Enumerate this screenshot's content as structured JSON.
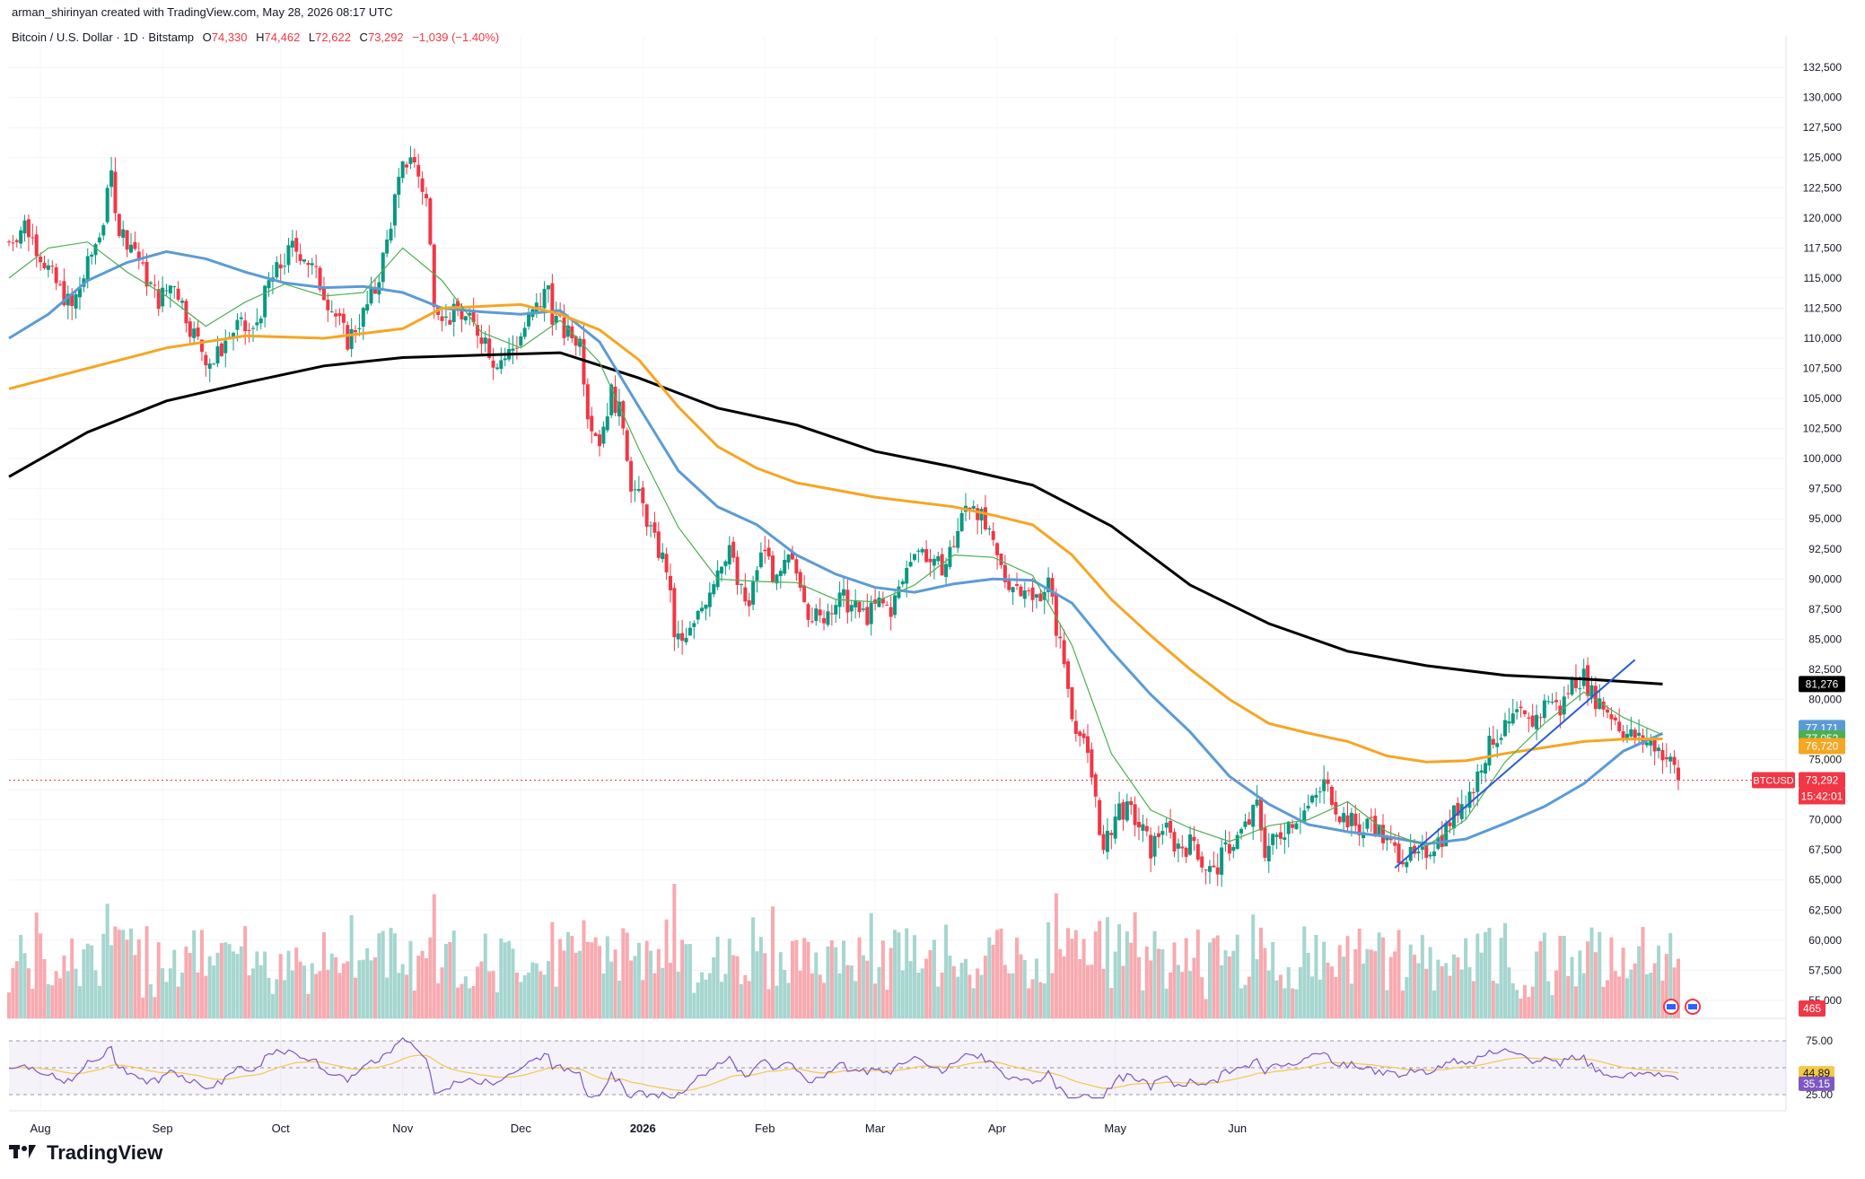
{
  "credit": "arman_shirinyan created with TradingView.com, May 28, 2026 08:17 UTC",
  "brand": "TradingView",
  "legend": {
    "symbol": "Bitcoin / U.S. Dollar · 1D · Bitstamp",
    "open_label": "O",
    "open": "74,330",
    "high_label": "H",
    "high": "74,462",
    "low_label": "L",
    "low": "72,622",
    "close_label": "C",
    "close": "73,292",
    "change": "−1,039 (−1.40%)"
  },
  "colors": {
    "up": "#089981",
    "down": "#f23645",
    "ma_black": "#000000",
    "ma_blue": "#5b9bd5",
    "ma_orange": "#f5a623",
    "ma_green": "#4caf50",
    "trendline": "#2a5bd7",
    "rsi": "#7e57c2",
    "rsi_ma": "#f2c94c"
  },
  "chart_data": {
    "type": "candlestick",
    "title": "Bitcoin / U.S. Dollar · 1D · Bitstamp",
    "x_labels": [
      "Aug",
      "Sep",
      "Oct",
      "Nov",
      "Dec",
      "2026",
      "Feb",
      "Mar",
      "Apr",
      "May",
      "Jun"
    ],
    "y_ticks": [
      132500,
      130000,
      127500,
      125000,
      122500,
      120000,
      117500,
      115000,
      112500,
      110000,
      107500,
      105000,
      102500,
      100000,
      97500,
      95000,
      92500,
      90000,
      87500,
      85000,
      82500,
      80000,
      77500,
      75000,
      72500,
      70000,
      67500,
      65000,
      62500,
      60000,
      57500,
      55000
    ],
    "y_tick_labels": [
      "132,500",
      "130,000",
      "127,500",
      "125,000",
      "122,500",
      "120,000",
      "117,500",
      "115,000",
      "112,500",
      "110,000",
      "107,500",
      "105,000",
      "102,500",
      "100,000",
      "97,500",
      "95,000",
      "92,500",
      "90,000",
      "87,500",
      "85,000",
      "82,500",
      "80,000",
      "77,500",
      "75,000",
      "72,500",
      "70,000",
      "67,500",
      "65,000",
      "62,500",
      "60,000",
      "57,500",
      "55,000"
    ],
    "ylim": [
      53500,
      134000
    ],
    "price_path": [
      [
        0,
        118000
      ],
      [
        4,
        119500
      ],
      [
        8,
        117000
      ],
      [
        12,
        114500
      ],
      [
        16,
        112500
      ],
      [
        20,
        116000
      ],
      [
        24,
        119800
      ],
      [
        26,
        123500
      ],
      [
        28,
        119000
      ],
      [
        32,
        117500
      ],
      [
        34,
        115500
      ],
      [
        38,
        113200
      ],
      [
        42,
        114800
      ],
      [
        46,
        111000
      ],
      [
        50,
        108500
      ],
      [
        52,
        108000
      ],
      [
        55,
        109800
      ],
      [
        58,
        111000
      ],
      [
        62,
        110400
      ],
      [
        66,
        114500
      ],
      [
        69,
        116000
      ],
      [
        72,
        117500
      ],
      [
        75,
        117000
      ],
      [
        78,
        115200
      ],
      [
        82,
        112500
      ],
      [
        86,
        109800
      ],
      [
        90,
        112000
      ],
      [
        93,
        114000
      ],
      [
        96,
        118000
      ],
      [
        98,
        121500
      ],
      [
        100,
        124000
      ],
      [
        102,
        125300
      ],
      [
        104,
        123500
      ],
      [
        106,
        121500
      ],
      [
        108,
        113500
      ],
      [
        111,
        111500
      ],
      [
        114,
        112200
      ],
      [
        118,
        111000
      ],
      [
        121,
        110000
      ],
      [
        123,
        108200
      ],
      [
        126,
        108400
      ],
      [
        129,
        109600
      ],
      [
        132,
        111500
      ],
      [
        135,
        113000
      ],
      [
        137,
        114400
      ],
      [
        138,
        112000
      ],
      [
        141,
        110500
      ],
      [
        145,
        109800
      ],
      [
        147,
        104000
      ],
      [
        150,
        101500
      ],
      [
        153,
        105500
      ],
      [
        156,
        103000
      ],
      [
        158,
        98000
      ],
      [
        161,
        96000
      ],
      [
        164,
        93000
      ],
      [
        167,
        91000
      ],
      [
        169,
        85500
      ],
      [
        171,
        84500
      ],
      [
        174,
        86000
      ],
      [
        177,
        88500
      ],
      [
        180,
        91000
      ],
      [
        183,
        92800
      ],
      [
        185,
        89500
      ],
      [
        188,
        87500
      ],
      [
        190,
        91000
      ],
      [
        192,
        92500
      ],
      [
        195,
        89500
      ],
      [
        198,
        91500
      ],
      [
        201,
        90000
      ],
      [
        203,
        87500
      ],
      [
        206,
        86500
      ],
      [
        209,
        88000
      ],
      [
        212,
        88300
      ],
      [
        215,
        87400
      ],
      [
        218,
        86900
      ],
      [
        221,
        88000
      ],
      [
        224,
        87500
      ],
      [
        227,
        89800
      ],
      [
        230,
        92800
      ],
      [
        233,
        92000
      ],
      [
        235,
        90900
      ],
      [
        238,
        91300
      ],
      [
        241,
        94000
      ],
      [
        243,
        96000
      ],
      [
        245,
        96500
      ],
      [
        247,
        95000
      ],
      [
        250,
        92500
      ],
      [
        253,
        90000
      ],
      [
        256,
        89400
      ],
      [
        258,
        89500
      ],
      [
        260,
        88000
      ],
      [
        262,
        89000
      ],
      [
        264,
        89700
      ],
      [
        266,
        86000
      ],
      [
        268,
        83000
      ],
      [
        270,
        79000
      ],
      [
        272,
        77000
      ],
      [
        274,
        75000
      ],
      [
        276,
        72000
      ],
      [
        278,
        67000
      ],
      [
        280,
        69500
      ],
      [
        282,
        71000
      ],
      [
        285,
        70500
      ],
      [
        288,
        69000
      ],
      [
        290,
        67500
      ],
      [
        293,
        69500
      ],
      [
        296,
        68000
      ],
      [
        299,
        67800
      ],
      [
        301,
        68300
      ],
      [
        303,
        66500
      ],
      [
        306,
        65500
      ],
      [
        309,
        67500
      ],
      [
        312,
        68500
      ],
      [
        315,
        69800
      ],
      [
        317,
        71200
      ],
      [
        319,
        67500
      ],
      [
        322,
        68600
      ],
      [
        325,
        69800
      ],
      [
        328,
        70500
      ],
      [
        330,
        71000
      ],
      [
        332,
        71800
      ],
      [
        334,
        73000
      ],
      [
        336,
        72000
      ],
      [
        338,
        70500
      ],
      [
        341,
        69800
      ],
      [
        344,
        69000
      ],
      [
        346,
        70200
      ],
      [
        349,
        68500
      ],
      [
        352,
        67400
      ],
      [
        355,
        67000
      ],
      [
        358,
        66600
      ],
      [
        361,
        67800
      ],
      [
        364,
        68600
      ],
      [
        366,
        69900
      ],
      [
        369,
        71500
      ],
      [
        372,
        72700
      ],
      [
        374,
        74800
      ],
      [
        377,
        76800
      ],
      [
        380,
        77400
      ],
      [
        383,
        78700
      ],
      [
        386,
        77900
      ],
      [
        389,
        78900
      ],
      [
        391,
        80200
      ],
      [
        394,
        79100
      ],
      [
        397,
        81500
      ],
      [
        400,
        81900
      ],
      [
        402,
        80400
      ],
      [
        405,
        79500
      ],
      [
        408,
        78400
      ],
      [
        410,
        77300
      ],
      [
        413,
        76800
      ],
      [
        415,
        76500
      ],
      [
        418,
        76300
      ],
      [
        420,
        75600
      ],
      [
        423,
        74300
      ],
      [
        424,
        73292
      ]
    ],
    "moving_averages": [
      {
        "period": 200,
        "label": "81,276",
        "color": "#000000",
        "values": [
          [
            0,
            98500
          ],
          [
            20,
            102200
          ],
          [
            40,
            104800
          ],
          [
            60,
            106300
          ],
          [
            80,
            107700
          ],
          [
            100,
            108400
          ],
          [
            120,
            108600
          ],
          [
            140,
            108800
          ],
          [
            160,
            106700
          ],
          [
            180,
            104200
          ],
          [
            200,
            102800
          ],
          [
            220,
            100600
          ],
          [
            240,
            99300
          ],
          [
            260,
            97800
          ],
          [
            280,
            94400
          ],
          [
            300,
            89500
          ],
          [
            320,
            86300
          ],
          [
            340,
            84000
          ],
          [
            360,
            82800
          ],
          [
            380,
            82000
          ],
          [
            400,
            81700
          ],
          [
            420,
            81276
          ]
        ]
      },
      {
        "period": 50,
        "label": "77,171",
        "color": "#5b9bd5",
        "values": [
          [
            0,
            110000
          ],
          [
            10,
            112000
          ],
          [
            20,
            114800
          ],
          [
            30,
            116300
          ],
          [
            40,
            117200
          ],
          [
            50,
            116600
          ],
          [
            60,
            115500
          ],
          [
            70,
            114600
          ],
          [
            80,
            114200
          ],
          [
            90,
            114300
          ],
          [
            100,
            113800
          ],
          [
            110,
            112500
          ],
          [
            120,
            112200
          ],
          [
            130,
            112000
          ],
          [
            140,
            112300
          ],
          [
            150,
            109700
          ],
          [
            160,
            104300
          ],
          [
            170,
            99000
          ],
          [
            180,
            96000
          ],
          [
            190,
            94500
          ],
          [
            200,
            92000
          ],
          [
            210,
            90400
          ],
          [
            220,
            89300
          ],
          [
            230,
            88900
          ],
          [
            240,
            89600
          ],
          [
            250,
            90000
          ],
          [
            260,
            89900
          ],
          [
            270,
            88000
          ],
          [
            280,
            84000
          ],
          [
            290,
            80400
          ],
          [
            300,
            77300
          ],
          [
            310,
            73600
          ],
          [
            320,
            71300
          ],
          [
            330,
            69600
          ],
          [
            340,
            69000
          ],
          [
            350,
            68600
          ],
          [
            360,
            68000
          ],
          [
            370,
            68400
          ],
          [
            380,
            69700
          ],
          [
            390,
            71100
          ],
          [
            400,
            73000
          ],
          [
            410,
            75700
          ],
          [
            420,
            77171
          ]
        ]
      },
      {
        "period": 100,
        "label": "76,720",
        "color": "#f5a623",
        "values": [
          [
            0,
            105800
          ],
          [
            20,
            107500
          ],
          [
            40,
            109200
          ],
          [
            60,
            110200
          ],
          [
            80,
            110000
          ],
          [
            100,
            110800
          ],
          [
            110,
            112500
          ],
          [
            130,
            112800
          ],
          [
            140,
            112000
          ],
          [
            150,
            110700
          ],
          [
            160,
            108200
          ],
          [
            170,
            104300
          ],
          [
            180,
            101000
          ],
          [
            190,
            99200
          ],
          [
            200,
            98000
          ],
          [
            220,
            96800
          ],
          [
            240,
            96000
          ],
          [
            250,
            95300
          ],
          [
            260,
            94500
          ],
          [
            270,
            92000
          ],
          [
            280,
            88300
          ],
          [
            290,
            85300
          ],
          [
            300,
            82500
          ],
          [
            310,
            80000
          ],
          [
            320,
            78000
          ],
          [
            330,
            77200
          ],
          [
            340,
            76500
          ],
          [
            350,
            75300
          ],
          [
            360,
            74800
          ],
          [
            370,
            74900
          ],
          [
            380,
            75500
          ],
          [
            390,
            76000
          ],
          [
            400,
            76500
          ],
          [
            410,
            76700
          ],
          [
            420,
            76720
          ]
        ]
      },
      {
        "period": 20,
        "label": "77,052",
        "color": "#4caf50",
        "values": [
          [
            0,
            115000
          ],
          [
            10,
            117500
          ],
          [
            20,
            118000
          ],
          [
            30,
            115500
          ],
          [
            40,
            113500
          ],
          [
            50,
            111000
          ],
          [
            60,
            113000
          ],
          [
            70,
            114500
          ],
          [
            80,
            113500
          ],
          [
            90,
            113800
          ],
          [
            100,
            117500
          ],
          [
            110,
            114800
          ],
          [
            120,
            110500
          ],
          [
            130,
            109200
          ],
          [
            140,
            111500
          ],
          [
            150,
            108000
          ],
          [
            160,
            100800
          ],
          [
            170,
            94300
          ],
          [
            180,
            90000
          ],
          [
            190,
            89800
          ],
          [
            200,
            89700
          ],
          [
            210,
            88300
          ],
          [
            220,
            88100
          ],
          [
            230,
            89500
          ],
          [
            240,
            92000
          ],
          [
            250,
            91800
          ],
          [
            260,
            90300
          ],
          [
            270,
            84500
          ],
          [
            280,
            75500
          ],
          [
            290,
            70800
          ],
          [
            300,
            69300
          ],
          [
            310,
            68200
          ],
          [
            320,
            69500
          ],
          [
            330,
            70000
          ],
          [
            340,
            71500
          ],
          [
            350,
            69000
          ],
          [
            360,
            67800
          ],
          [
            370,
            70000
          ],
          [
            380,
            74800
          ],
          [
            390,
            78000
          ],
          [
            400,
            80600
          ],
          [
            410,
            78500
          ],
          [
            420,
            77052
          ]
        ]
      }
    ],
    "trendline": {
      "from": [
        352,
        66000
      ],
      "to": [
        413,
        83300
      ]
    },
    "volume": [
      465
    ],
    "rsi": {
      "ticks": [
        "75.00",
        "25.00"
      ],
      "value": "35.15",
      "ma_value": "44.89",
      "ylim": [
        15,
        85
      ]
    },
    "price_tags": [
      {
        "label": "81,276",
        "value": 81276,
        "color": "#000000"
      },
      {
        "label": "77,171",
        "value": 77171,
        "color": "#5b9bd5"
      },
      {
        "label": "77,052",
        "value": 77052,
        "color": "#4caf50"
      },
      {
        "label": "76,720",
        "value": 76720,
        "color": "#f5a623"
      },
      {
        "label": "73,292",
        "value": 73292,
        "color": "#f23645",
        "symbol": "BTCUSD",
        "countdown": "15:42:01"
      }
    ],
    "volume_tag": "465"
  }
}
